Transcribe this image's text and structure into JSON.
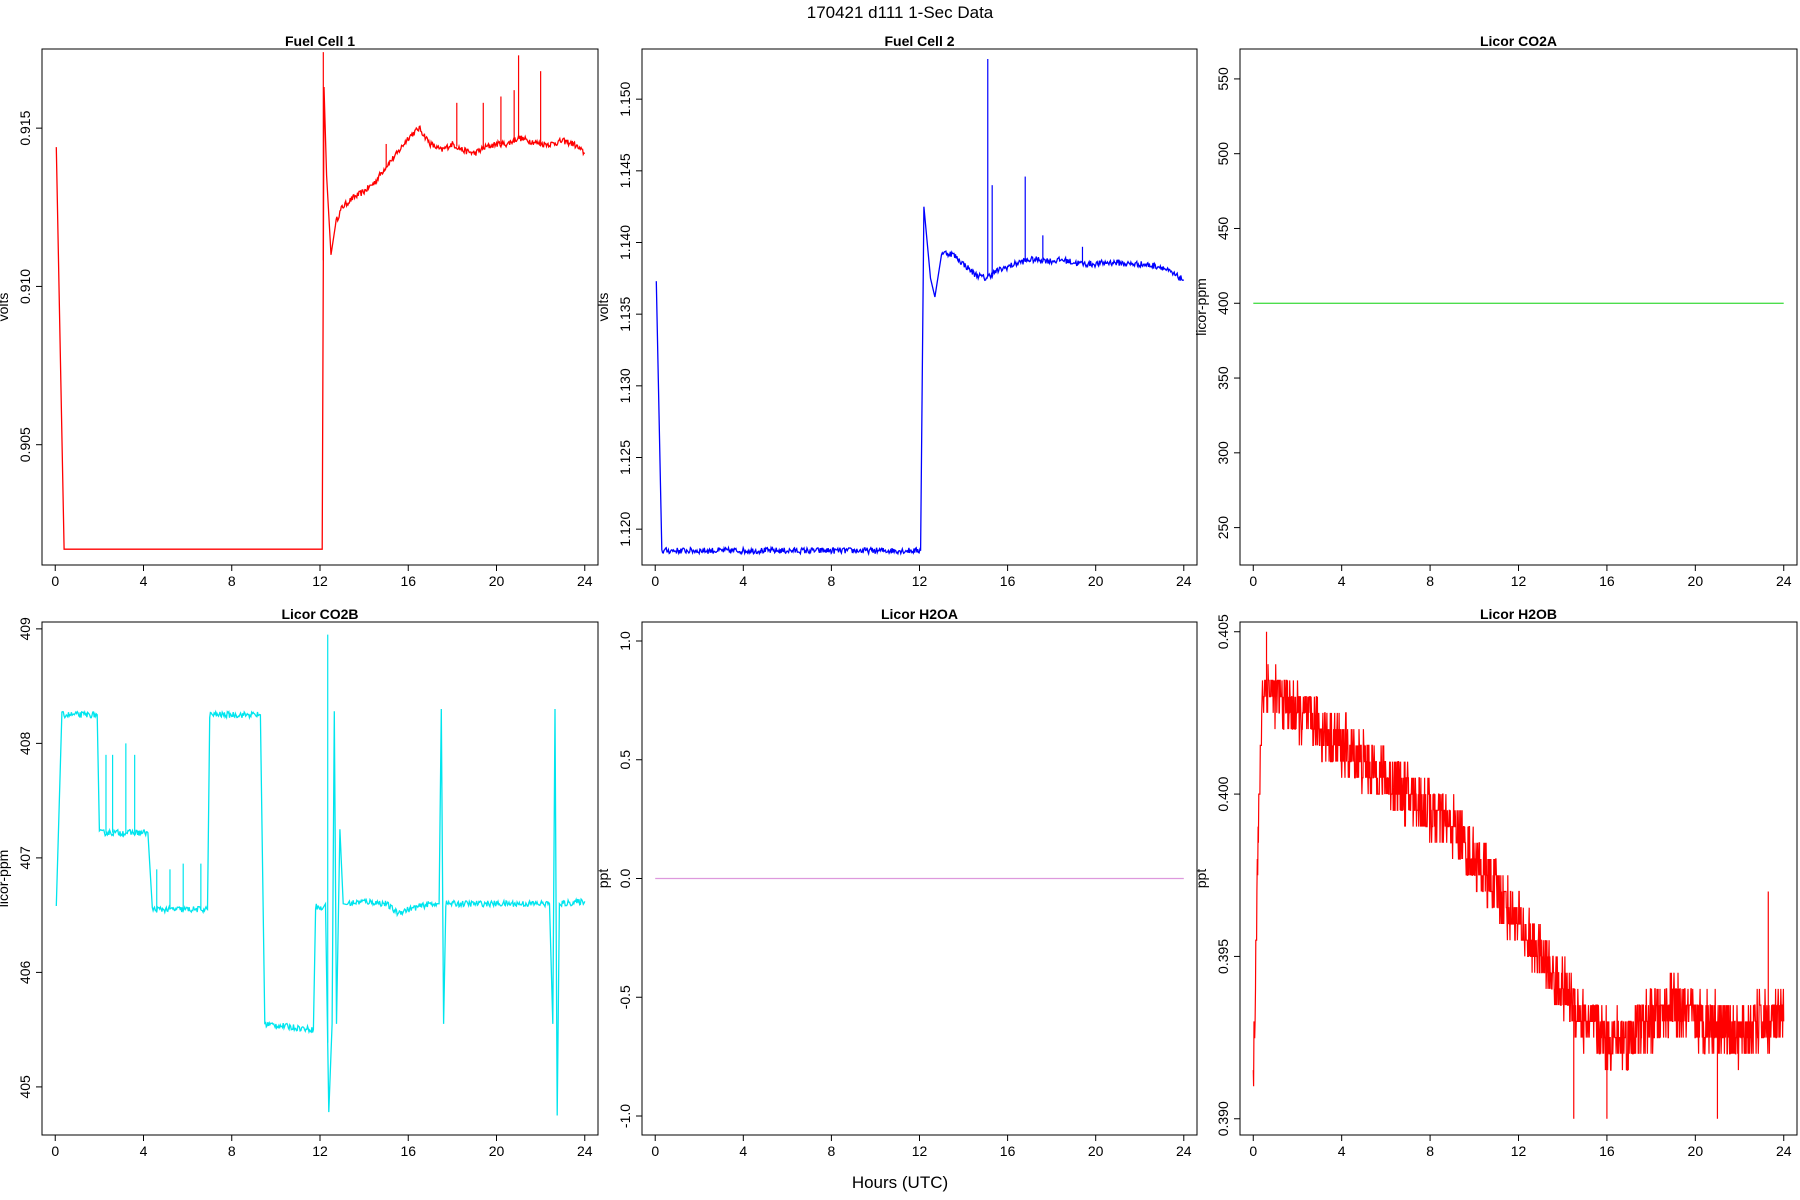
{
  "figure": {
    "title": "170421   d111   1-Sec Data",
    "xlabel": "Hours (UTC)"
  },
  "chart_data": [
    {
      "type": "line",
      "title": "Fuel Cell 1",
      "ylabel": "volts",
      "color": "#ff0000",
      "xlim": [
        -0.6,
        24.6
      ],
      "ylim": [
        0.9012,
        0.9175
      ],
      "xticks": [
        0,
        4,
        8,
        12,
        16,
        20,
        24
      ],
      "yticks": [
        0.905,
        0.91,
        0.915
      ],
      "ytick_labels": [
        "0.905",
        "0.910",
        "0.915"
      ],
      "series": [
        {
          "x": [
            0.05,
            0.4,
            12.1,
            12.18,
            12.3,
            12.5,
            12.7,
            13,
            13.5,
            14,
            14.5,
            15,
            15.5,
            16,
            16.5,
            17,
            17.5,
            18,
            18.5,
            19,
            19.5,
            20,
            20.5,
            21,
            21.5,
            22,
            22.5,
            23,
            23.5,
            24
          ],
          "y": [
            0.9144,
            0.9017,
            0.9017,
            0.9163,
            0.9135,
            0.911,
            0.912,
            0.9125,
            0.9128,
            0.913,
            0.9133,
            0.9138,
            0.9142,
            0.9147,
            0.915,
            0.9145,
            0.9143,
            0.9145,
            0.9143,
            0.9142,
            0.9144,
            0.9145,
            0.9145,
            0.9147,
            0.9146,
            0.9145,
            0.9145,
            0.9146,
            0.9145,
            0.9142
          ]
        }
      ],
      "spikes": [
        {
          "x": 12.15,
          "y": 0.9174
        },
        {
          "x": 15.0,
          "y": 0.9145
        },
        {
          "x": 18.2,
          "y": 0.9158
        },
        {
          "x": 19.4,
          "y": 0.9158
        },
        {
          "x": 20.2,
          "y": 0.916
        },
        {
          "x": 20.8,
          "y": 0.9162
        },
        {
          "x": 21.0,
          "y": 0.9173
        },
        {
          "x": 22.0,
          "y": 0.9168
        }
      ]
    },
    {
      "type": "line",
      "title": "Fuel Cell 2",
      "ylabel": "volts",
      "color": "#0000ff",
      "xlim": [
        -0.6,
        24.6
      ],
      "ylim": [
        1.1175,
        1.1535
      ],
      "xticks": [
        0,
        4,
        8,
        12,
        16,
        20,
        24
      ],
      "yticks": [
        1.12,
        1.125,
        1.13,
        1.135,
        1.14,
        1.145,
        1.15
      ],
      "ytick_labels": [
        "1.120",
        "1.125",
        "1.130",
        "1.135",
        "1.140",
        "1.145",
        "1.150"
      ],
      "series": [
        {
          "x": [
            0.05,
            0.3,
            12.05,
            12.2,
            12.5,
            12.7,
            13,
            13.5,
            14,
            14.5,
            15,
            15.5,
            16,
            16.5,
            17,
            17.5,
            18,
            18.5,
            19,
            19.5,
            20,
            20.5,
            21,
            21.5,
            22,
            22.5,
            23,
            23.5,
            24
          ],
          "y": [
            1.1373,
            1.1185,
            1.1185,
            1.1425,
            1.1375,
            1.1362,
            1.1393,
            1.1392,
            1.1385,
            1.1378,
            1.1375,
            1.138,
            1.1383,
            1.1386,
            1.1388,
            1.1388,
            1.1387,
            1.1388,
            1.1386,
            1.1385,
            1.1385,
            1.1386,
            1.1386,
            1.1385,
            1.1385,
            1.1384,
            1.1383,
            1.1378,
            1.1374
          ]
        }
      ],
      "spikes": [
        {
          "x": 15.1,
          "y": 1.1528
        },
        {
          "x": 15.3,
          "y": 1.144
        },
        {
          "x": 16.8,
          "y": 1.1446
        },
        {
          "x": 17.6,
          "y": 1.1405
        },
        {
          "x": 19.4,
          "y": 1.1397
        }
      ]
    },
    {
      "type": "line",
      "title": "Licor CO2A",
      "ylabel": "licor-ppm",
      "color": "#4dde4d",
      "xlim": [
        -0.6,
        24.6
      ],
      "ylim": [
        225,
        570
      ],
      "xticks": [
        0,
        4,
        8,
        12,
        16,
        20,
        24
      ],
      "yticks": [
        250,
        300,
        350,
        400,
        450,
        500,
        550
      ],
      "ytick_labels": [
        "250",
        "300",
        "350",
        "400",
        "450",
        "500",
        "550"
      ],
      "series": [
        {
          "x": [
            0,
            24
          ],
          "y": [
            400,
            400
          ]
        }
      ],
      "spikes": []
    },
    {
      "type": "line",
      "title": "Licor CO2B",
      "ylabel": "licor-ppm",
      "color": "#00e5ee",
      "xlim": [
        -0.6,
        24.6
      ],
      "ylim": [
        404.58,
        409.06
      ],
      "xticks": [
        0,
        4,
        8,
        12,
        16,
        20,
        24
      ],
      "yticks": [
        405,
        406,
        407,
        408,
        409
      ],
      "ytick_labels": [
        "405",
        "406",
        "407",
        "408",
        "409"
      ],
      "series": [
        {
          "x": [
            0.05,
            0.3,
            1.9,
            2.0,
            4.2,
            4.4,
            6.9,
            7.0,
            9.3,
            9.5,
            11.7,
            11.8,
            12.1,
            12.25,
            12.4,
            12.55,
            12.65,
            12.75,
            12.9,
            13.05,
            13.2,
            14,
            15,
            15.5,
            16,
            17,
            17.3,
            17.4,
            17.5,
            17.6,
            17.7,
            18.5,
            20,
            21,
            22,
            22.4,
            22.55,
            22.65,
            22.75,
            22.85,
            22.95,
            24
          ],
          "y": [
            406.58,
            408.25,
            408.25,
            407.22,
            407.22,
            406.55,
            406.55,
            408.25,
            408.25,
            405.55,
            405.5,
            406.58,
            406.55,
            406.6,
            404.78,
            405.55,
            408.28,
            405.55,
            407.25,
            406.6,
            406.6,
            406.62,
            406.6,
            406.52,
            406.55,
            406.6,
            406.6,
            406.6,
            408.3,
            405.55,
            406.6,
            406.6,
            406.6,
            406.6,
            406.6,
            406.6,
            405.55,
            408.3,
            404.75,
            406.6,
            406.6,
            406.62
          ]
        }
      ],
      "spikes": [
        {
          "x": 2.3,
          "y": 407.9
        },
        {
          "x": 2.6,
          "y": 407.9
        },
        {
          "x": 3.2,
          "y": 408.0
        },
        {
          "x": 3.6,
          "y": 407.9
        },
        {
          "x": 4.6,
          "y": 406.9
        },
        {
          "x": 5.2,
          "y": 406.9
        },
        {
          "x": 5.8,
          "y": 406.95
        },
        {
          "x": 6.6,
          "y": 406.95
        },
        {
          "x": 12.35,
          "y": 408.95
        }
      ]
    },
    {
      "type": "line",
      "title": "Licor H2OA",
      "ylabel": "ppt",
      "color": "#dd99dd",
      "xlim": [
        -0.6,
        24.6
      ],
      "ylim": [
        -1.08,
        1.08
      ],
      "xticks": [
        0,
        4,
        8,
        12,
        16,
        20,
        24
      ],
      "yticks": [
        -1.0,
        -0.5,
        0.0,
        0.5,
        1.0
      ],
      "ytick_labels": [
        "-1.0",
        "-0.5",
        "0.0",
        "0.5",
        "1.0"
      ],
      "series": [
        {
          "x": [
            0,
            24
          ],
          "y": [
            0,
            0
          ]
        }
      ],
      "spikes": []
    },
    {
      "type": "line",
      "title": "Licor H2OB",
      "ylabel": "ppt",
      "color": "#ff0000",
      "xlim": [
        -0.6,
        24.6
      ],
      "ylim": [
        0.3895,
        0.4053
      ],
      "xticks": [
        0,
        4,
        8,
        12,
        16,
        20,
        24
      ],
      "yticks": [
        0.39,
        0.395,
        0.4,
        0.405
      ],
      "ytick_labels": [
        "0.390",
        "0.395",
        "0.400",
        "0.405"
      ],
      "series": [
        {
          "x": [
            0.0,
            0.2,
            0.4,
            0.6,
            1,
            2,
            3,
            4,
            5,
            6,
            7,
            8,
            9,
            10,
            11,
            12,
            13,
            14,
            15,
            16,
            17,
            18,
            19,
            20,
            21,
            22,
            23,
            24
          ],
          "y": [
            0.391,
            0.398,
            0.403,
            0.4035,
            0.403,
            0.4025,
            0.402,
            0.4015,
            0.401,
            0.4005,
            0.4,
            0.3995,
            0.399,
            0.398,
            0.397,
            0.396,
            0.395,
            0.394,
            0.393,
            0.3925,
            0.3925,
            0.393,
            0.3935,
            0.393,
            0.393,
            0.3925,
            0.393,
            0.393
          ]
        }
      ],
      "noise": 0.0018,
      "spikes": [
        {
          "x": 0.6,
          "y": 0.405
        },
        {
          "x": 14.5,
          "y": 0.39
        },
        {
          "x": 16.0,
          "y": 0.39
        },
        {
          "x": 21.0,
          "y": 0.39
        },
        {
          "x": 23.3,
          "y": 0.397
        }
      ]
    }
  ]
}
